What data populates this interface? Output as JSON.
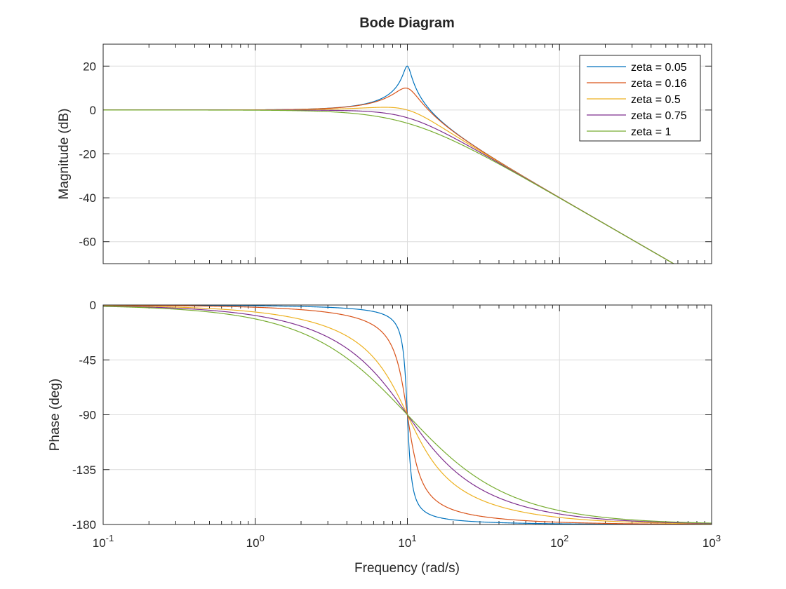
{
  "chart_data": {
    "type": "line",
    "title": "Bode Diagram",
    "xlabel": "Frequency (rad/s)",
    "x_scale": "log",
    "xlim": [
      0.1,
      1000
    ],
    "x_ticks": [
      {
        "base": "10",
        "exp": "-1"
      },
      {
        "base": "10",
        "exp": "0"
      },
      {
        "base": "10",
        "exp": "1"
      },
      {
        "base": "10",
        "exp": "2"
      },
      {
        "base": "10",
        "exp": "3"
      }
    ],
    "natural_frequency": 10,
    "grid": true,
    "legend_position": "top-right",
    "magnitude_plot": {
      "ylabel": "Magnitude (dB)",
      "ylim": [
        -70,
        30
      ],
      "y_ticks": [
        20,
        0,
        -20,
        -40,
        -60
      ]
    },
    "phase_plot": {
      "ylabel": "Phase (deg)",
      "ylim": [
        -180,
        0
      ],
      "y_ticks": [
        0,
        -45,
        -90,
        -135,
        -180
      ]
    },
    "series": [
      {
        "name": "zeta = 0.05",
        "zeta": 0.05,
        "color": "#0072bd"
      },
      {
        "name": "zeta = 0.16",
        "zeta": 0.16,
        "color": "#d95319"
      },
      {
        "name": "zeta = 0.5",
        "zeta": 0.5,
        "color": "#edb120"
      },
      {
        "name": "zeta = 0.75",
        "zeta": 0.75,
        "color": "#7e2f8e"
      },
      {
        "name": "zeta = 1",
        "zeta": 1,
        "color": "#77ac30"
      }
    ]
  }
}
